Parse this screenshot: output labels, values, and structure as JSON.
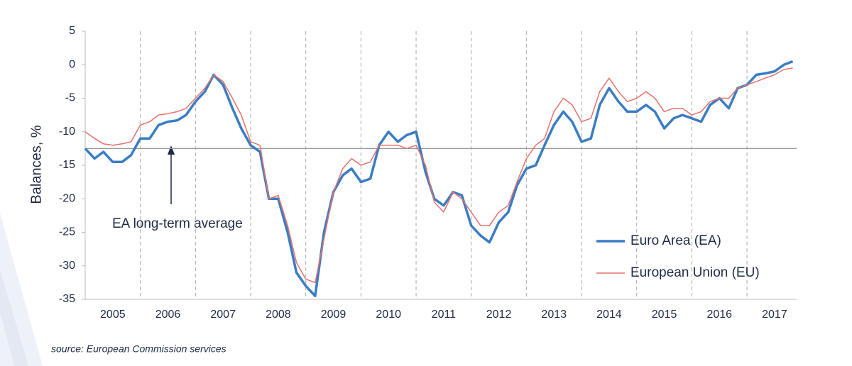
{
  "chart_data": {
    "type": "line",
    "y_axis_label": "Balances, %",
    "annotation": "EA long-term average",
    "source": "source: European Commission services",
    "reference_line": -12.5,
    "reference_color": "#999999",
    "xlim": [
      2005,
      2017.9
    ],
    "ylim": [
      -35,
      5
    ],
    "yticks": [
      5,
      0,
      -5,
      -10,
      -15,
      -20,
      -25,
      -30,
      -35
    ],
    "xticks": [
      {
        "value": 2005.5,
        "label": "2005"
      },
      {
        "value": 2006.5,
        "label": "2006"
      },
      {
        "value": 2007.5,
        "label": "2007"
      },
      {
        "value": 2008.5,
        "label": "2008"
      },
      {
        "value": 2009.5,
        "label": "2009"
      },
      {
        "value": 2010.5,
        "label": "2010"
      },
      {
        "value": 2011.5,
        "label": "2011"
      },
      {
        "value": 2012.5,
        "label": "2012"
      },
      {
        "value": 2013.5,
        "label": "2013"
      },
      {
        "value": 2014.5,
        "label": "2014"
      },
      {
        "value": 2015.5,
        "label": "2015"
      },
      {
        "value": 2016.5,
        "label": "2016"
      },
      {
        "value": 2017.5,
        "label": "2017"
      }
    ],
    "x_grid_lines": [
      2006,
      2007,
      2008,
      2009,
      2010,
      2011,
      2012,
      2013,
      2014,
      2015,
      2016,
      2017
    ],
    "legend": "lower right",
    "x": [
      2005,
      2005.17,
      2005.33,
      2005.5,
      2005.67,
      2005.83,
      2006,
      2006.17,
      2006.33,
      2006.5,
      2006.67,
      2006.83,
      2007,
      2007.17,
      2007.33,
      2007.5,
      2007.67,
      2007.83,
      2008,
      2008.17,
      2008.33,
      2008.5,
      2008.67,
      2008.83,
      2009,
      2009.17,
      2009.33,
      2009.5,
      2009.67,
      2009.83,
      2010,
      2010.17,
      2010.33,
      2010.5,
      2010.67,
      2010.83,
      2011,
      2011.17,
      2011.33,
      2011.5,
      2011.67,
      2011.83,
      2012,
      2012.17,
      2012.33,
      2012.5,
      2012.67,
      2012.83,
      2013,
      2013.17,
      2013.33,
      2013.5,
      2013.67,
      2013.83,
      2014,
      2014.17,
      2014.33,
      2014.5,
      2014.67,
      2014.83,
      2015,
      2015.17,
      2015.33,
      2015.5,
      2015.67,
      2015.83,
      2016,
      2016.17,
      2016.33,
      2016.5,
      2016.67,
      2016.83,
      2017,
      2017.17,
      2017.33,
      2017.5,
      2017.67,
      2017.83
    ],
    "series": [
      {
        "name": "Euro Area (EA)",
        "color": "#3a7dc4",
        "width": 3.5,
        "values": [
          -12.5,
          -14,
          -13,
          -14.5,
          -14.5,
          -13.5,
          -11,
          -11,
          -9,
          -8.5,
          -8.3,
          -7.5,
          -5.5,
          -4,
          -1.5,
          -3,
          -6.5,
          -9.5,
          -12,
          -13,
          -20,
          -20,
          -25,
          -31,
          -33,
          -34.5,
          -25,
          -19,
          -16.5,
          -15.5,
          -17.5,
          -17,
          -12,
          -10,
          -11.5,
          -10.5,
          -10,
          -16,
          -20,
          -21,
          -19,
          -19.5,
          -24,
          -25.5,
          -26.5,
          -23.5,
          -22,
          -18,
          -15.5,
          -15,
          -12,
          -9,
          -7,
          -8.5,
          -11.5,
          -11,
          -6,
          -3.5,
          -5.5,
          -7,
          -7,
          -6,
          -7,
          -9.5,
          -8,
          -7.5,
          -8,
          -8.5,
          -6,
          -5,
          -6.5,
          -3.5,
          -3,
          -1.5,
          -1.3,
          -1,
          0,
          0.5
        ]
      },
      {
        "name": "European Union (EU)",
        "color": "#e8706a",
        "width": 1.5,
        "values": [
          -10,
          -11,
          -11.8,
          -12,
          -11.8,
          -11.5,
          -9,
          -8.5,
          -7.5,
          -7.3,
          -7,
          -6.5,
          -5,
          -3.5,
          -1.5,
          -2.5,
          -5,
          -7.5,
          -11.5,
          -12,
          -20,
          -19.5,
          -24,
          -29.5,
          -32,
          -32.5,
          -26,
          -19,
          -15.5,
          -14,
          -15,
          -14.5,
          -12,
          -12,
          -12,
          -12.5,
          -12,
          -15,
          -20.5,
          -22,
          -19,
          -20,
          -22,
          -24,
          -24,
          -22,
          -21,
          -17.5,
          -14,
          -12,
          -11,
          -7,
          -5,
          -6,
          -8.5,
          -8,
          -4,
          -2,
          -4,
          -5.5,
          -5,
          -4,
          -5,
          -7,
          -6.5,
          -6.5,
          -7.5,
          -7,
          -5.5,
          -5,
          -5,
          -3.5,
          -3,
          -2.5,
          -2,
          -1.5,
          -0.7,
          -0.5
        ]
      }
    ]
  }
}
